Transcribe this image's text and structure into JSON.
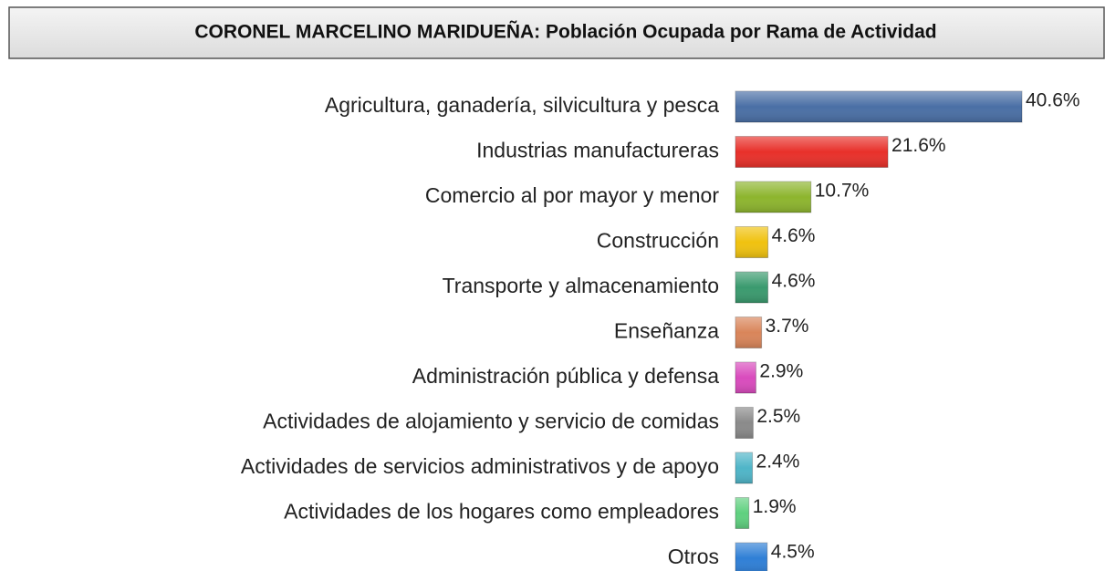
{
  "chart_data": {
    "type": "bar",
    "orientation": "horizontal",
    "title": "CORONEL MARCELINO MARIDUEÑA: Población Ocupada por Rama de Actividad",
    "categories": [
      "Agricultura, ganadería, silvicultura y pesca",
      "Industrias manufactureras",
      "Comercio al por mayor y menor",
      "Construcción",
      "Transporte y almacenamiento",
      "Enseñanza",
      "Administración pública y defensa",
      "Actividades de alojamiento y servicio de comidas",
      "Actividades de servicios administrativos y de apoyo",
      "Actividades de los hogares como empleadores",
      "Otros"
    ],
    "values": [
      40.6,
      21.6,
      10.7,
      4.6,
      4.6,
      3.7,
      2.9,
      2.5,
      2.4,
      1.9,
      4.5
    ],
    "value_labels": [
      "40.6%",
      "21.6%",
      "10.7%",
      "4.6%",
      "4.6%",
      "3.7%",
      "2.9%",
      "2.5%",
      "2.4%",
      "1.9%",
      "4.5%"
    ],
    "colors": [
      "#4a6fa5",
      "#e8302a",
      "#8db52e",
      "#f0c20f",
      "#3a9a6e",
      "#d9855a",
      "#d94bbd",
      "#8a8a8a",
      "#4fb5c8",
      "#5fd07f",
      "#2f7fd6"
    ]
  }
}
